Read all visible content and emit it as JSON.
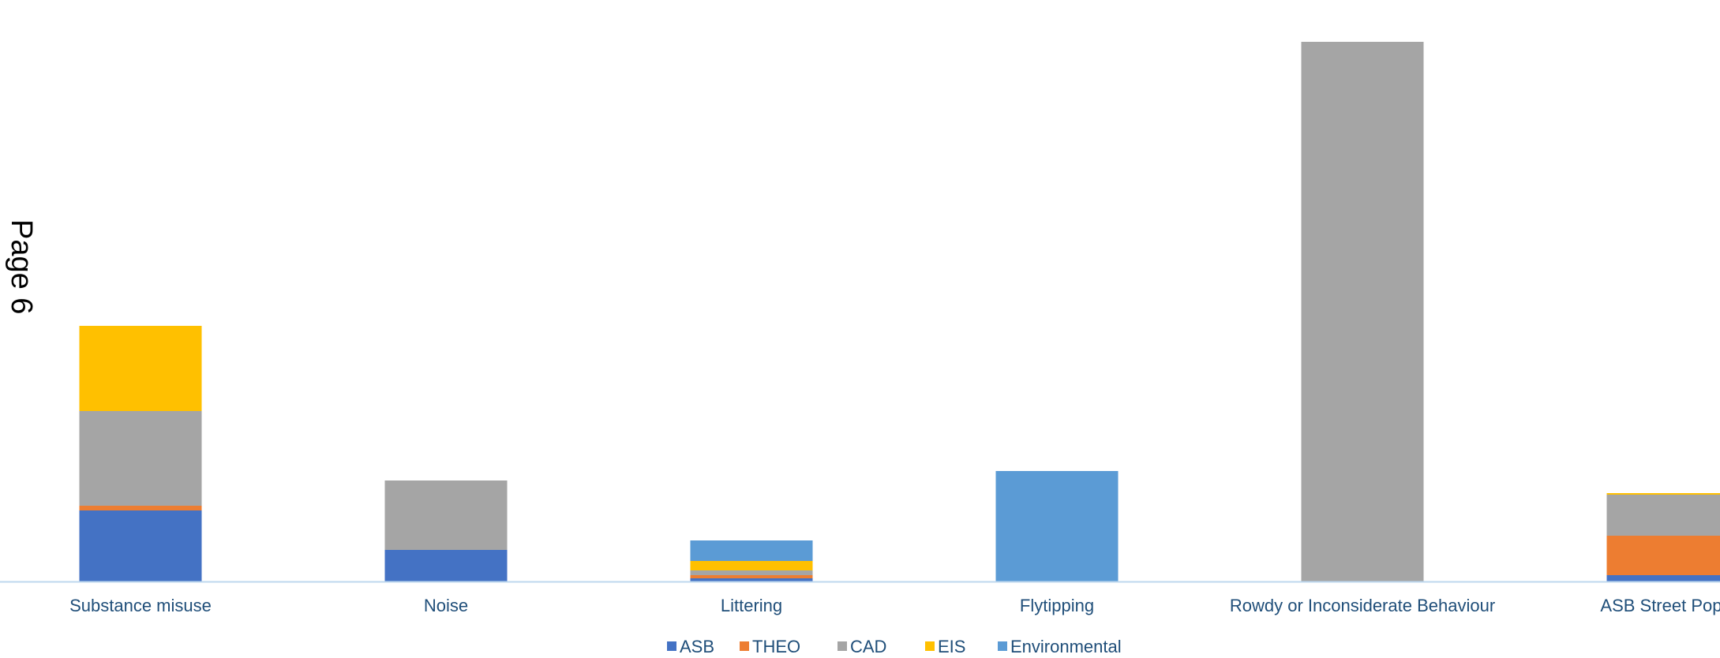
{
  "page_label": "Page 6",
  "colors": {
    "ASB": "#4472c4",
    "THEO": "#ed7d31",
    "CAD": "#a5a5a5",
    "EIS": "#ffc000",
    "Environmental": "#5b9bd5",
    "axis": "#bdd7ee",
    "text": "#1f4e79"
  },
  "chart_data": {
    "type": "bar",
    "stacked": true,
    "categories": [
      "Substance misuse",
      "Noise",
      "Littering",
      "Flytipping",
      "Rowdy or Inconsiderate Behaviour",
      "ASB Street Popul"
    ],
    "series": [
      {
        "name": "ASB",
        "values": [
          45,
          20,
          2,
          0,
          0,
          4
        ]
      },
      {
        "name": "THEO",
        "values": [
          3,
          0,
          2,
          0,
          0,
          25
        ]
      },
      {
        "name": "CAD",
        "values": [
          60,
          44,
          3,
          0,
          342,
          26
        ]
      },
      {
        "name": "EIS",
        "values": [
          54,
          0,
          6,
          0,
          0,
          1
        ]
      },
      {
        "name": "Environmental",
        "values": [
          0,
          0,
          13,
          70,
          0,
          0
        ]
      }
    ],
    "ylim": [
      0,
      350
    ],
    "legend_position": "bottom",
    "grid": false,
    "title": "",
    "xlabel": "",
    "ylabel": ""
  }
}
